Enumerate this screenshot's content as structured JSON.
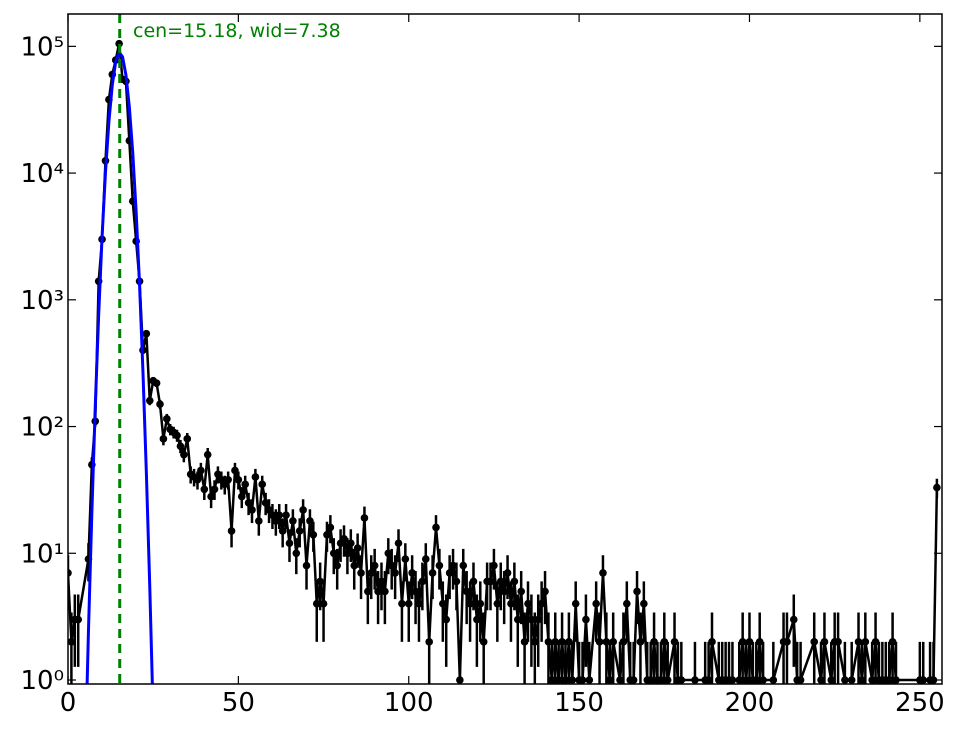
{
  "chart_data": {
    "type": "errorbar",
    "annotation": "cen=15.18, wid=7.38",
    "annotation_color": "#008000",
    "vline": {
      "x": 15.18,
      "color": "#008000"
    },
    "xlim": [
      0,
      256.5
    ],
    "xticks": [
      0,
      50,
      100,
      150,
      200,
      250
    ],
    "ylim": [
      0.93,
      180000
    ],
    "log_y": true,
    "yticks": [
      {
        "value": 1,
        "label": "10⁰"
      },
      {
        "value": 10,
        "label": "10¹"
      },
      {
        "value": 100,
        "label": "10²"
      },
      {
        "value": 1000,
        "label": "10³"
      },
      {
        "value": 10000,
        "label": "10⁴"
      },
      {
        "value": 100000,
        "label": "10⁵"
      }
    ],
    "grid": false,
    "series": [
      {
        "type": "errorbar",
        "color": "#000000",
        "x": [
          0,
          1,
          2,
          3,
          6,
          7,
          8,
          9,
          10,
          11,
          12,
          13,
          14,
          15,
          16,
          17,
          18,
          19,
          20,
          21,
          22,
          23,
          24,
          25,
          26,
          27,
          28,
          29,
          30,
          31,
          32,
          33,
          34,
          35,
          36,
          37,
          38,
          39,
          40,
          41,
          42,
          43,
          44,
          45,
          46,
          47,
          48,
          49,
          50,
          51,
          52,
          53,
          54,
          55,
          56,
          57,
          58,
          59,
          60,
          61,
          62,
          63,
          64,
          65,
          66,
          67,
          68,
          69,
          70,
          71,
          72,
          73,
          74,
          75,
          76,
          77,
          78,
          79,
          80,
          81,
          82,
          83,
          84,
          85,
          86,
          87,
          88,
          89,
          90,
          91,
          92,
          93,
          94,
          95,
          96,
          97,
          98,
          99,
          100,
          101,
          102,
          103,
          104,
          105,
          106,
          107,
          108,
          109,
          110,
          111,
          112,
          113,
          114,
          115,
          116,
          117,
          118,
          119,
          120,
          121,
          122,
          123,
          124,
          125,
          126,
          127,
          128,
          129,
          130,
          131,
          132,
          133,
          134,
          135,
          136,
          137,
          138,
          139,
          140,
          141,
          142,
          143,
          144,
          145,
          146,
          147,
          148,
          149,
          150,
          151,
          152,
          153,
          155,
          156,
          157,
          158,
          159,
          160,
          162,
          163,
          164,
          165,
          166,
          167,
          168,
          169,
          170,
          171,
          172,
          173,
          174,
          175,
          176,
          178,
          179,
          180,
          184,
          187,
          188,
          189,
          191,
          192,
          193,
          194,
          195,
          197,
          198,
          199,
          200,
          201,
          202,
          203,
          204,
          207,
          210,
          211,
          213,
          214,
          215,
          219,
          221,
          222,
          224,
          225,
          226,
          228,
          230,
          232,
          233,
          234,
          236,
          237,
          238,
          239,
          240,
          241,
          242,
          243,
          250,
          251,
          253,
          254,
          255
        ],
        "values": [
          7,
          2,
          3,
          3,
          9,
          50,
          110,
          1400,
          3000,
          12500,
          38000,
          60000,
          78000,
          105000,
          55000,
          53000,
          18000,
          6000,
          2900,
          1400,
          400,
          540,
          160,
          230,
          220,
          150,
          80,
          115,
          95,
          90,
          85,
          70,
          60,
          80,
          42,
          40,
          38,
          45,
          32,
          60,
          28,
          32,
          42,
          38,
          35,
          38,
          15,
          45,
          38,
          28,
          35,
          25,
          22,
          40,
          18,
          35,
          25,
          22,
          20,
          18,
          20,
          15,
          20,
          12,
          18,
          10,
          15,
          22,
          8,
          18,
          14,
          4,
          6,
          4,
          14,
          16,
          10,
          8,
          12,
          13,
          10,
          12,
          8,
          11,
          7,
          19,
          5,
          7,
          8,
          5,
          6,
          5,
          10,
          8,
          7,
          12,
          4,
          9,
          4,
          7,
          5,
          4,
          6,
          9,
          2,
          7,
          16,
          8,
          4,
          3,
          7,
          8,
          6,
          1,
          8,
          5,
          4,
          6,
          3,
          4,
          2,
          6,
          6,
          8,
          4,
          6,
          5,
          7,
          4,
          6,
          3,
          5,
          2,
          4,
          3,
          2,
          3,
          4,
          5,
          2,
          1,
          2,
          1,
          2,
          1,
          2,
          1,
          4,
          1,
          1,
          3,
          1,
          4,
          2,
          7,
          2,
          1,
          2,
          1,
          2,
          4,
          1,
          1,
          5,
          2,
          4,
          1,
          1,
          2,
          1,
          1,
          2,
          1,
          2,
          1,
          1,
          1,
          1,
          1,
          2,
          1,
          1,
          1,
          1,
          1,
          1,
          2,
          1,
          2,
          1,
          1,
          2,
          1,
          1,
          2,
          2,
          3,
          1,
          1,
          2,
          1,
          2,
          1,
          2,
          2,
          1,
          1,
          2,
          1,
          2,
          1,
          2,
          1,
          1,
          1,
          1,
          2,
          1,
          1,
          1,
          1,
          1,
          33
        ],
        "errors": [
          2.65,
          1.41,
          1.73,
          1.73,
          3,
          7.07,
          10.49,
          37.42,
          54.77,
          111.8,
          194.94,
          244.95,
          279.28,
          324.04,
          234.52,
          230.22,
          134.16,
          77.46,
          53.85,
          37.42,
          20,
          23.24,
          12.65,
          15.17,
          14.83,
          12.25,
          8.94,
          10.72,
          9.75,
          9.49,
          9.22,
          8.37,
          7.75,
          8.94,
          6.48,
          6.32,
          6.16,
          6.71,
          5.66,
          7.75,
          5.29,
          5.66,
          6.48,
          6.16,
          5.92,
          6.16,
          3.87,
          6.71,
          6.16,
          5.29,
          5.92,
          5,
          4.69,
          6.32,
          4.24,
          5.92,
          5,
          4.69,
          4.47,
          4.24,
          4.47,
          3.87,
          4.47,
          3.46,
          4.24,
          3.16,
          3.87,
          4.69,
          2.83,
          4.24,
          3.74,
          2,
          2.45,
          2,
          3.74,
          4,
          3.16,
          2.83,
          3.46,
          3.61,
          3.16,
          3.46,
          2.83,
          3.32,
          2.65,
          4.36,
          2.24,
          2.65,
          2.83,
          2.24,
          2.45,
          2.24,
          3.16,
          2.83,
          2.65,
          3.46,
          2,
          3,
          2,
          2.65,
          2.24,
          2,
          2.45,
          3,
          1.41,
          2.65,
          4,
          2.83,
          2,
          1.73,
          2.65,
          2.83,
          2.45,
          1,
          2.83,
          2.24,
          2,
          2.45,
          1.73,
          2,
          1.41,
          2.45,
          2.45,
          2.83,
          2,
          2.45,
          2.24,
          2.65,
          2,
          2.45,
          1.73,
          2.24,
          1.41,
          2,
          1.73,
          1.41,
          1.73,
          2,
          2.24,
          1.41,
          1,
          1.41,
          1,
          1.41,
          1,
          1.41,
          1,
          2,
          1,
          1,
          1.73,
          1,
          2,
          1.41,
          2.65,
          1.41,
          1,
          1.41,
          1,
          1.41,
          2,
          1,
          1,
          2.24,
          1.41,
          2,
          1,
          1,
          1.41,
          1,
          1,
          1.41,
          1,
          1.41,
          1,
          1,
          1,
          1,
          1,
          1.41,
          1,
          1,
          1,
          1,
          1,
          1,
          1.41,
          1,
          1.41,
          1,
          1,
          1.41,
          1,
          1,
          1.41,
          1.41,
          1.73,
          1,
          1,
          1.41,
          1,
          1.41,
          1,
          1.41,
          1.41,
          1,
          1,
          1.41,
          1,
          1.41,
          1,
          1.41,
          1,
          1,
          1,
          1,
          1.41,
          1,
          1,
          1,
          1,
          1,
          5.74
        ]
      },
      {
        "type": "line",
        "color": "#0000ff",
        "x": [
          5,
          6,
          7,
          8,
          9,
          10,
          11,
          12,
          13,
          14,
          15,
          16,
          17,
          18,
          19,
          20,
          21,
          22,
          23,
          24,
          25
        ],
        "values": [
          0.21,
          2.4,
          21,
          144,
          762,
          3150,
          10170,
          25400,
          49700,
          75600,
          89640,
          82700,
          59500,
          33300,
          14500,
          4950,
          1310,
          270,
          43,
          5.4,
          0.52
        ]
      }
    ]
  }
}
